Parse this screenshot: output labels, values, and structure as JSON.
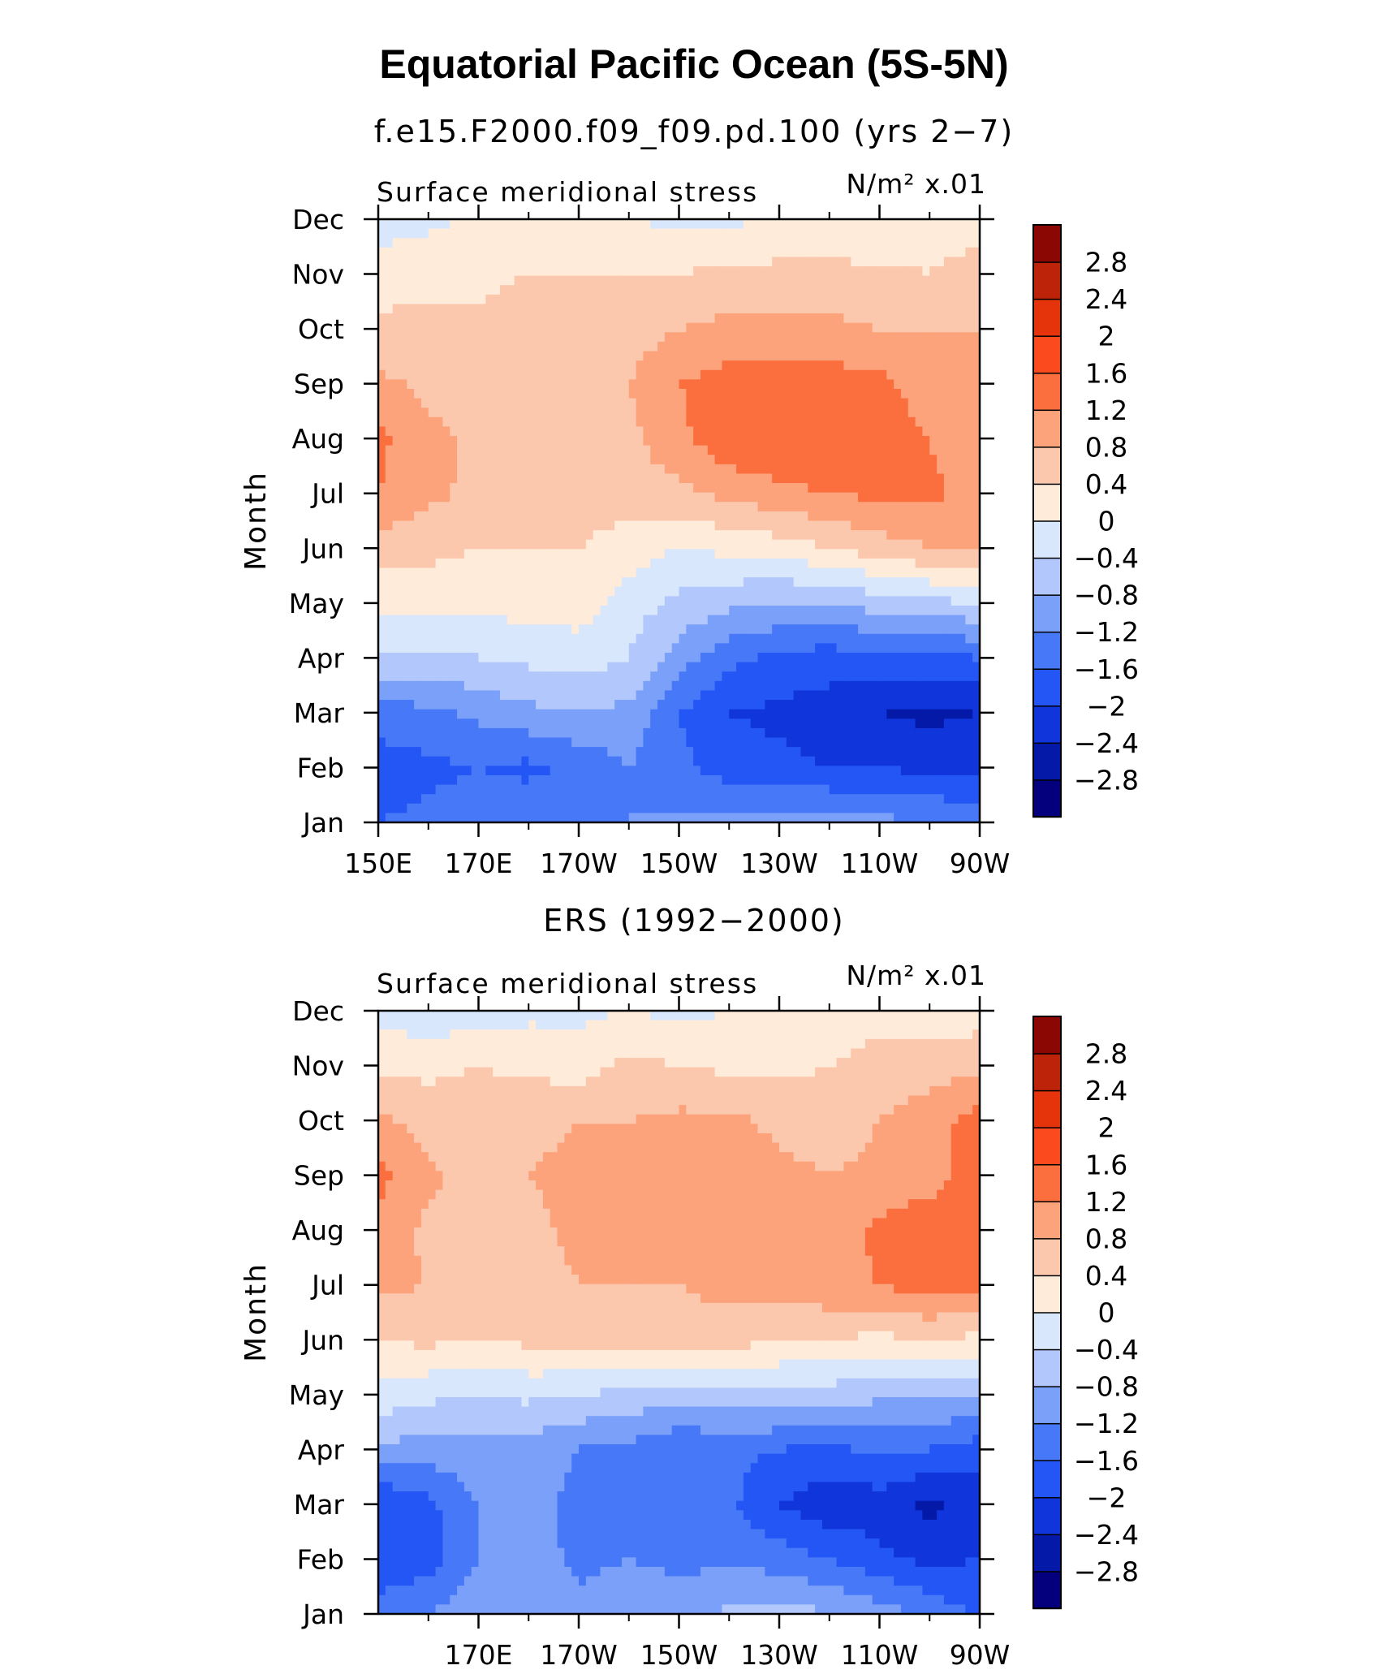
{
  "title": "Equatorial Pacific Ocean (5S-5N)",
  "chart_data": [
    {
      "type": "heatmap",
      "subtitle": "f.e15.F2000.f09_f09.pd.100 (yrs 2−7)",
      "left_label": "Surface meridional stress",
      "right_label": "N/m² x.01",
      "ylabel": "Month",
      "xlabel": "",
      "x_tick_labels": [
        "150E",
        "170E",
        "170W",
        "150W",
        "130W",
        "110W",
        "90W"
      ],
      "y_tick_labels": [
        "Jan",
        "Feb",
        "Mar",
        "Apr",
        "May",
        "Jun",
        "Jul",
        "Aug",
        "Sep",
        "Oct",
        "Nov",
        "Dec"
      ],
      "xlim": [
        150,
        270
      ],
      "ylim": [
        1,
        12
      ],
      "colorbar_labels": [
        "2.8",
        "2.4",
        "2",
        "1.6",
        "1.2",
        "0.8",
        "0.4",
        "0",
        "−0.4",
        "−0.8",
        "−1.2",
        "−1.6",
        "−2",
        "−2.4",
        "−2.8"
      ],
      "levels": [
        -2.8,
        -2.4,
        -2.0,
        -1.6,
        -1.2,
        -0.8,
        -0.4,
        0,
        0.4,
        0.8,
        1.2,
        1.6,
        2.0,
        2.4,
        2.8
      ],
      "x": [
        150,
        160,
        170,
        180,
        190,
        200,
        210,
        220,
        230,
        240,
        250,
        260,
        270
      ],
      "y": [
        1,
        2,
        3,
        4,
        5,
        6,
        7,
        8,
        9,
        10,
        11,
        12
      ],
      "z": [
        [
          -1.6,
          -1.5,
          -1.4,
          -1.3,
          -1.2,
          -1.2,
          -1.1,
          -1.0,
          -1.0,
          -1.0,
          -1.1,
          -1.2,
          -1.3
        ],
        [
          -1.8,
          -1.7,
          -1.6,
          -1.7,
          -1.5,
          -1.2,
          -1.5,
          -1.8,
          -1.9,
          -2.0,
          -2.0,
          -2.1,
          -2.1
        ],
        [
          -1.4,
          -1.3,
          -1.1,
          -0.9,
          -0.8,
          -0.9,
          -1.6,
          -2.0,
          -2.1,
          -2.2,
          -2.4,
          -2.5,
          -2.4
        ],
        [
          -0.4,
          -0.5,
          -0.4,
          -0.3,
          -0.2,
          -0.4,
          -1.0,
          -1.5,
          -1.7,
          -1.8,
          -1.7,
          -1.7,
          -1.6
        ],
        [
          0.1,
          0.2,
          0.1,
          0.2,
          0.2,
          -0.2,
          -0.5,
          -0.7,
          -0.8,
          -0.8,
          -0.6,
          -0.5,
          -0.4
        ],
        [
          0.6,
          0.5,
          0.4,
          0.4,
          0.4,
          0.2,
          0.0,
          0.1,
          0.2,
          0.4,
          0.6,
          0.8,
          0.9
        ],
        [
          1.2,
          0.9,
          0.7,
          0.6,
          0.6,
          0.6,
          0.7,
          0.9,
          1.1,
          1.2,
          1.3,
          1.3,
          1.0
        ],
        [
          1.3,
          0.9,
          0.7,
          0.6,
          0.6,
          0.7,
          1.1,
          1.5,
          1.6,
          1.5,
          1.4,
          1.2,
          0.9
        ],
        [
          0.9,
          0.7,
          0.6,
          0.6,
          0.6,
          0.8,
          1.2,
          1.4,
          1.4,
          1.4,
          1.3,
          1.0,
          0.9
        ],
        [
          0.5,
          0.5,
          0.5,
          0.6,
          0.6,
          0.6,
          0.8,
          0.9,
          0.9,
          0.9,
          0.8,
          0.8,
          0.8
        ],
        [
          0.2,
          0.3,
          0.3,
          0.4,
          0.4,
          0.4,
          0.4,
          0.5,
          0.5,
          0.5,
          0.5,
          0.4,
          0.6
        ],
        [
          -0.2,
          -0.1,
          0.1,
          0.2,
          0.1,
          0.0,
          -0.1,
          -0.1,
          0.1,
          0.1,
          0.0,
          0.2,
          0.2
        ]
      ]
    },
    {
      "type": "heatmap",
      "subtitle": "ERS (1992−2000)",
      "left_label": "Surface meridional stress",
      "right_label": "N/m² x.01",
      "ylabel": "Month",
      "xlabel": "",
      "x_tick_labels": [
        "170E",
        "170W",
        "150W",
        "130W",
        "110W",
        "90W"
      ],
      "y_tick_labels": [
        "Jan",
        "Feb",
        "Mar",
        "Apr",
        "May",
        "Jun",
        "Jul",
        "Aug",
        "Sep",
        "Oct",
        "Nov",
        "Dec"
      ],
      "xlim": [
        150,
        270
      ],
      "ylim": [
        1,
        12
      ],
      "colorbar_labels": [
        "2.8",
        "2.4",
        "2",
        "1.6",
        "1.2",
        "0.8",
        "0.4",
        "0",
        "−0.4",
        "−0.8",
        "−1.2",
        "−1.6",
        "−2",
        "−2.4",
        "−2.8"
      ],
      "levels": [
        -2.8,
        -2.4,
        -2.0,
        -1.6,
        -1.2,
        -0.8,
        -0.4,
        0,
        0.4,
        0.8,
        1.2,
        1.6,
        2.0,
        2.4,
        2.8
      ],
      "x": [
        150,
        160,
        170,
        180,
        190,
        200,
        210,
        220,
        230,
        240,
        250,
        260,
        270
      ],
      "y": [
        1,
        2,
        3,
        4,
        5,
        6,
        7,
        8,
        9,
        10,
        11,
        12
      ],
      "z": [
        [
          -1.4,
          -1.2,
          -0.9,
          -0.8,
          -1.1,
          -0.8,
          -1.0,
          -0.7,
          -0.6,
          -0.8,
          -1.0,
          -1.3,
          -1.7
        ],
        [
          -1.9,
          -1.8,
          -1.2,
          -1.0,
          -1.3,
          -1.2,
          -1.3,
          -1.3,
          -1.4,
          -1.6,
          -1.9,
          -2.1,
          -2.0
        ],
        [
          -2.0,
          -1.7,
          -1.2,
          -1.1,
          -1.3,
          -1.3,
          -1.4,
          -1.5,
          -2.0,
          -2.3,
          -2.2,
          -2.5,
          -2.2
        ],
        [
          -0.9,
          -1.0,
          -0.9,
          -1.0,
          -1.2,
          -1.3,
          -1.6,
          -1.5,
          -1.6,
          -1.7,
          -1.5,
          -1.6,
          -1.8
        ],
        [
          -0.1,
          -0.3,
          -0.4,
          -0.3,
          -0.4,
          -0.5,
          -0.6,
          -0.5,
          -0.5,
          -0.6,
          -0.7,
          -0.7,
          -0.8
        ],
        [
          0.4,
          0.5,
          0.4,
          0.5,
          0.6,
          0.5,
          0.7,
          0.6,
          0.4,
          0.4,
          0.3,
          0.4,
          0.3
        ],
        [
          0.9,
          0.8,
          0.7,
          0.6,
          0.8,
          0.8,
          0.8,
          0.9,
          1.0,
          1.1,
          1.2,
          1.4,
          1.3
        ],
        [
          1.1,
          0.7,
          0.6,
          0.7,
          0.9,
          1.0,
          0.9,
          0.9,
          0.9,
          0.9,
          1.3,
          1.5,
          1.4
        ],
        [
          1.3,
          0.9,
          0.6,
          0.8,
          0.9,
          1.0,
          1.0,
          1.0,
          0.9,
          0.8,
          0.9,
          1.0,
          1.5
        ],
        [
          0.9,
          0.6,
          0.6,
          0.7,
          0.8,
          0.8,
          0.9,
          0.9,
          0.7,
          0.6,
          0.8,
          1.0,
          1.4
        ],
        [
          0.3,
          0.3,
          0.4,
          0.3,
          0.2,
          0.5,
          0.4,
          0.3,
          0.3,
          0.4,
          0.6,
          0.6,
          0.7
        ],
        [
          -0.1,
          -0.3,
          -0.2,
          -0.1,
          -0.1,
          0.0,
          -0.1,
          0.0,
          0.1,
          0.1,
          0.2,
          0.1,
          0.2
        ]
      ]
    }
  ],
  "colors": {
    "palette": [
      "#04007d",
      "#0419a8",
      "#0f35db",
      "#2356f5",
      "#4678f7",
      "#7aa0f9",
      "#b2c7fb",
      "#d9e7fc",
      "#feebd9",
      "#fcc8ad",
      "#fca37c",
      "#fb6f3f",
      "#fb4b1e",
      "#e5340c",
      "#bd2308",
      "#8b0703"
    ]
  }
}
